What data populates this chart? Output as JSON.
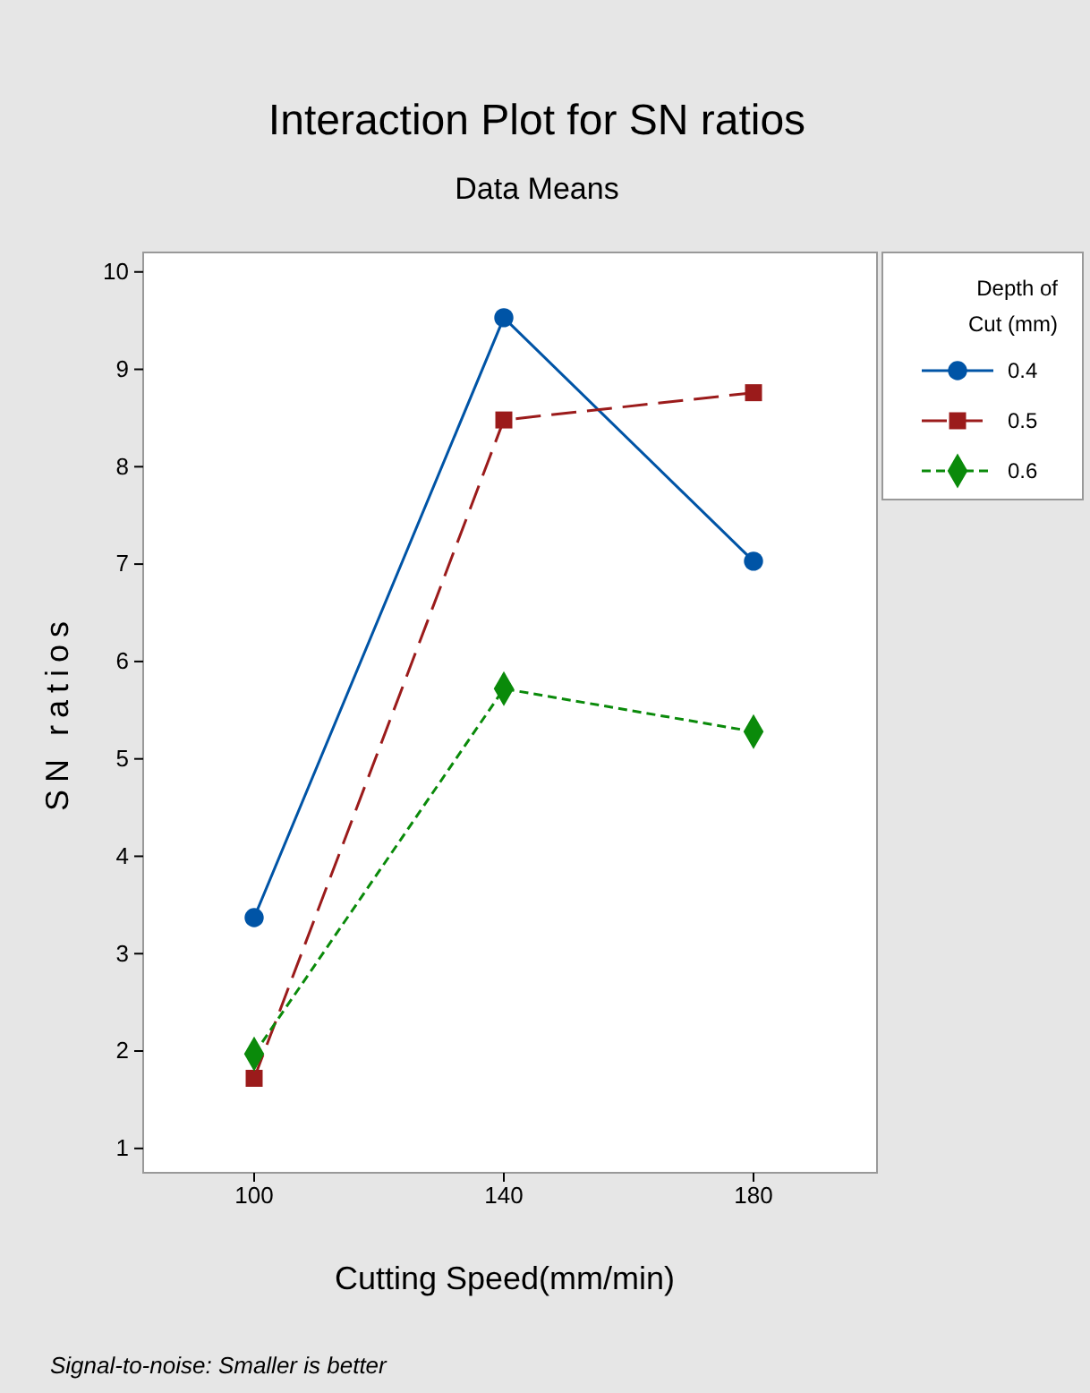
{
  "chart_data": {
    "type": "line",
    "title": "Interaction Plot for SN ratios",
    "subtitle": "Data Means",
    "xlabel": "Cutting Speed(mm/min)",
    "ylabel": "SN ratios",
    "legend_title": "Depth of\nCut (mm)",
    "categories": [
      "100",
      "140",
      "180"
    ],
    "series": [
      {
        "name": "0.4",
        "color": "#0054a6",
        "values": [
          3.37,
          9.53,
          7.03
        ],
        "marker": "circle",
        "line_style": "solid"
      },
      {
        "name": "0.5",
        "color": "#9b1b1b",
        "values": [
          1.72,
          8.48,
          8.76
        ],
        "marker": "square",
        "line_style": "dashed"
      },
      {
        "name": "0.6",
        "color": "#0a8a0a",
        "values": [
          1.97,
          5.72,
          5.28
        ],
        "marker": "diamond",
        "line_style": "dotted"
      }
    ],
    "ylim": [
      0.75,
      10.2
    ],
    "yticks": [
      1,
      2,
      3,
      4,
      5,
      6,
      7,
      8,
      9,
      10
    ],
    "grid": false,
    "legend": "top right",
    "annotations": [
      "Signal-to-noise: Smaller is better"
    ]
  }
}
